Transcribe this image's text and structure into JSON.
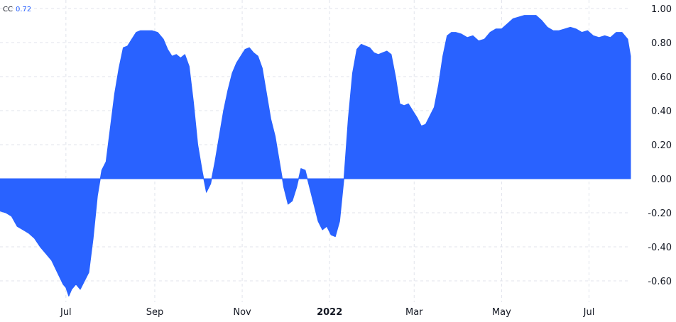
{
  "legend": {
    "name": "CC",
    "value": "0.72"
  },
  "colors": {
    "series": "#2962ff",
    "grid": "#e0e3eb",
    "text": "#131722"
  },
  "chart_data": {
    "type": "area",
    "title": "",
    "xlabel": "",
    "ylabel": "",
    "ylim": [
      -0.7,
      1.0
    ],
    "y_ticks": [
      "1.00",
      "0.80",
      "0.60",
      "0.40",
      "0.20",
      "0.00",
      "-0.20",
      "-0.40",
      "-0.60"
    ],
    "x_ticks": [
      {
        "label": "Jul",
        "x": "2021-07-01",
        "bold": false
      },
      {
        "label": "Sep",
        "x": "2021-09-01",
        "bold": false
      },
      {
        "label": "Nov",
        "x": "2021-11-01",
        "bold": false
      },
      {
        "label": "2022",
        "x": "2022-01-01",
        "bold": true
      },
      {
        "label": "Mar",
        "x": "2022-03-01",
        "bold": false
      },
      {
        "label": "May",
        "x": "2022-05-01",
        "bold": false
      },
      {
        "label": "Jul",
        "x": "2022-07-01",
        "bold": false
      }
    ],
    "grid": true,
    "series": [
      {
        "color": "#2962ff",
        "points": [
          [
            "2021-05-16",
            -0.19
          ],
          [
            "2021-05-20",
            -0.2
          ],
          [
            "2021-05-24",
            -0.22
          ],
          [
            "2021-05-28",
            -0.28
          ],
          [
            "2021-06-01",
            -0.3
          ],
          [
            "2021-06-05",
            -0.32
          ],
          [
            "2021-06-09",
            -0.35
          ],
          [
            "2021-06-13",
            -0.4
          ],
          [
            "2021-06-17",
            -0.44
          ],
          [
            "2021-06-21",
            -0.48
          ],
          [
            "2021-06-25",
            -0.55
          ],
          [
            "2021-06-29",
            -0.62
          ],
          [
            "2021-07-01",
            -0.64
          ],
          [
            "2021-07-03",
            -0.69
          ],
          [
            "2021-07-05",
            -0.65
          ],
          [
            "2021-07-08",
            -0.62
          ],
          [
            "2021-07-11",
            -0.65
          ],
          [
            "2021-07-14",
            -0.6
          ],
          [
            "2021-07-17",
            -0.55
          ],
          [
            "2021-07-20",
            -0.35
          ],
          [
            "2021-07-23",
            -0.1
          ],
          [
            "2021-07-26",
            0.05
          ],
          [
            "2021-07-29",
            0.1
          ],
          [
            "2021-08-01",
            0.3
          ],
          [
            "2021-08-04",
            0.5
          ],
          [
            "2021-08-07",
            0.65
          ],
          [
            "2021-08-10",
            0.77
          ],
          [
            "2021-08-13",
            0.78
          ],
          [
            "2021-08-16",
            0.82
          ],
          [
            "2021-08-19",
            0.86
          ],
          [
            "2021-08-22",
            0.87
          ],
          [
            "2021-08-26",
            0.87
          ],
          [
            "2021-08-30",
            0.87
          ],
          [
            "2021-09-03",
            0.86
          ],
          [
            "2021-09-07",
            0.82
          ],
          [
            "2021-09-10",
            0.76
          ],
          [
            "2021-09-13",
            0.72
          ],
          [
            "2021-09-16",
            0.73
          ],
          [
            "2021-09-19",
            0.71
          ],
          [
            "2021-09-22",
            0.73
          ],
          [
            "2021-09-25",
            0.66
          ],
          [
            "2021-09-28",
            0.45
          ],
          [
            "2021-10-01",
            0.2
          ],
          [
            "2021-10-04",
            0.05
          ],
          [
            "2021-10-07",
            -0.08
          ],
          [
            "2021-10-10",
            -0.03
          ],
          [
            "2021-10-13",
            0.1
          ],
          [
            "2021-10-16",
            0.25
          ],
          [
            "2021-10-19",
            0.4
          ],
          [
            "2021-10-22",
            0.52
          ],
          [
            "2021-10-25",
            0.62
          ],
          [
            "2021-10-28",
            0.68
          ],
          [
            "2021-10-31",
            0.72
          ],
          [
            "2021-11-03",
            0.76
          ],
          [
            "2021-11-06",
            0.77
          ],
          [
            "2021-11-09",
            0.74
          ],
          [
            "2021-11-12",
            0.72
          ],
          [
            "2021-11-15",
            0.65
          ],
          [
            "2021-11-18",
            0.5
          ],
          [
            "2021-11-21",
            0.35
          ],
          [
            "2021-11-24",
            0.25
          ],
          [
            "2021-11-27",
            0.1
          ],
          [
            "2021-11-30",
            -0.05
          ],
          [
            "2021-12-03",
            -0.15
          ],
          [
            "2021-12-06",
            -0.13
          ],
          [
            "2021-12-09",
            -0.05
          ],
          [
            "2021-12-12",
            0.06
          ],
          [
            "2021-12-15",
            0.05
          ],
          [
            "2021-12-18",
            -0.05
          ],
          [
            "2021-12-21",
            -0.15
          ],
          [
            "2021-12-24",
            -0.25
          ],
          [
            "2021-12-27",
            -0.3
          ],
          [
            "2021-12-30",
            -0.28
          ],
          [
            "2022-01-02",
            -0.33
          ],
          [
            "2022-01-05",
            -0.34
          ],
          [
            "2022-01-08",
            -0.25
          ],
          [
            "2022-01-11",
            0.0
          ],
          [
            "2022-01-14",
            0.35
          ],
          [
            "2022-01-17",
            0.62
          ],
          [
            "2022-01-20",
            0.76
          ],
          [
            "2022-01-23",
            0.79
          ],
          [
            "2022-01-26",
            0.78
          ],
          [
            "2022-01-29",
            0.77
          ],
          [
            "2022-02-01",
            0.74
          ],
          [
            "2022-02-04",
            0.73
          ],
          [
            "2022-02-07",
            0.74
          ],
          [
            "2022-02-10",
            0.75
          ],
          [
            "2022-02-13",
            0.73
          ],
          [
            "2022-02-16",
            0.6
          ],
          [
            "2022-02-19",
            0.44
          ],
          [
            "2022-02-22",
            0.43
          ],
          [
            "2022-02-25",
            0.44
          ],
          [
            "2022-02-28",
            0.4
          ],
          [
            "2022-03-03",
            0.36
          ],
          [
            "2022-03-06",
            0.31
          ],
          [
            "2022-03-09",
            0.32
          ],
          [
            "2022-03-12",
            0.37
          ],
          [
            "2022-03-15",
            0.42
          ],
          [
            "2022-03-18",
            0.55
          ],
          [
            "2022-03-21",
            0.72
          ],
          [
            "2022-03-24",
            0.84
          ],
          [
            "2022-03-27",
            0.86
          ],
          [
            "2022-03-30",
            0.86
          ],
          [
            "2022-04-03",
            0.85
          ],
          [
            "2022-04-07",
            0.83
          ],
          [
            "2022-04-11",
            0.84
          ],
          [
            "2022-04-15",
            0.81
          ],
          [
            "2022-04-19",
            0.82
          ],
          [
            "2022-04-23",
            0.86
          ],
          [
            "2022-04-27",
            0.88
          ],
          [
            "2022-05-01",
            0.88
          ],
          [
            "2022-05-05",
            0.91
          ],
          [
            "2022-05-09",
            0.94
          ],
          [
            "2022-05-13",
            0.95
          ],
          [
            "2022-05-17",
            0.96
          ],
          [
            "2022-05-21",
            0.96
          ],
          [
            "2022-05-25",
            0.96
          ],
          [
            "2022-05-29",
            0.93
          ],
          [
            "2022-06-02",
            0.89
          ],
          [
            "2022-06-06",
            0.87
          ],
          [
            "2022-06-10",
            0.87
          ],
          [
            "2022-06-14",
            0.88
          ],
          [
            "2022-06-18",
            0.89
          ],
          [
            "2022-06-22",
            0.88
          ],
          [
            "2022-06-26",
            0.86
          ],
          [
            "2022-06-30",
            0.87
          ],
          [
            "2022-07-04",
            0.84
          ],
          [
            "2022-07-08",
            0.83
          ],
          [
            "2022-07-12",
            0.84
          ],
          [
            "2022-07-16",
            0.83
          ],
          [
            "2022-07-20",
            0.86
          ],
          [
            "2022-07-24",
            0.86
          ],
          [
            "2022-07-28",
            0.82
          ],
          [
            "2022-07-30",
            0.72
          ]
        ]
      }
    ]
  }
}
